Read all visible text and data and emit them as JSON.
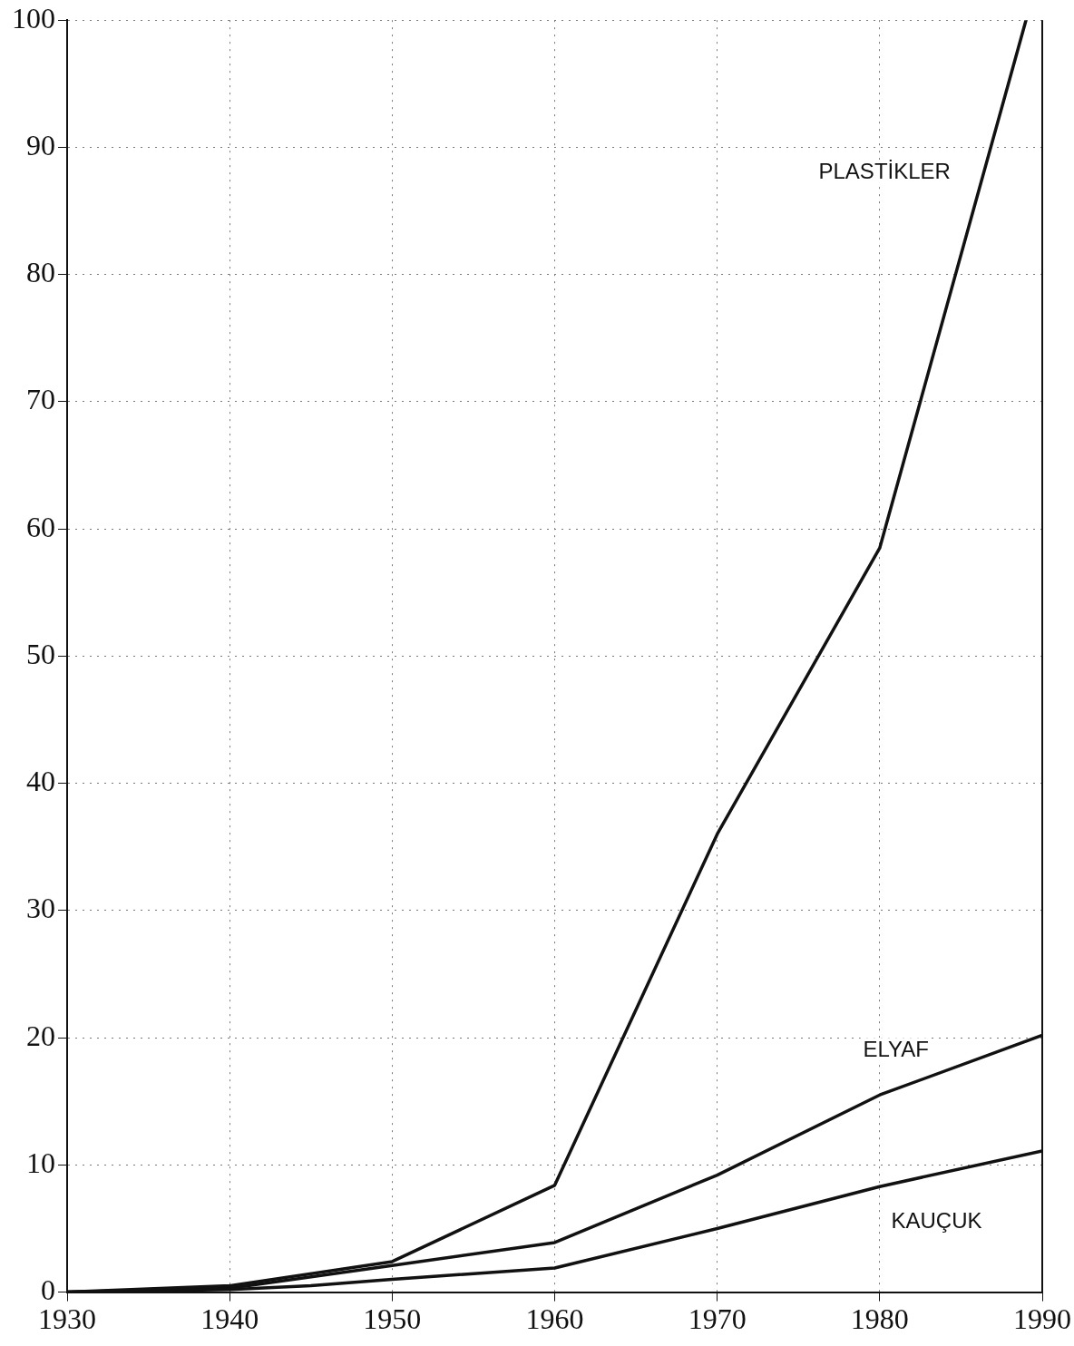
{
  "chart_data": {
    "type": "line",
    "xlim": [
      1930,
      1990
    ],
    "xticks": [
      1930,
      1940,
      1950,
      1960,
      1970,
      1980,
      1990
    ],
    "ylim": [
      0,
      100
    ],
    "yticks": [
      0,
      10,
      20,
      30,
      40,
      50,
      60,
      70,
      80,
      90,
      100
    ],
    "grid": true,
    "legend": false,
    "marker": "none",
    "line_style": "solid",
    "series": [
      {
        "name": "PLASTİKLER",
        "color": "#111111",
        "x": [
          1930,
          1940,
          1950,
          1960,
          1970,
          1980,
          1989
        ],
        "values": [
          0,
          0.5,
          2.4,
          8.4,
          36,
          58.5,
          100
        ]
      },
      {
        "name": "ELYAF",
        "color": "#111111",
        "x": [
          1930,
          1940,
          1950,
          1960,
          1970,
          1980,
          1990
        ],
        "values": [
          0,
          0.3,
          2.1,
          3.9,
          9.2,
          15.5,
          20.2
        ]
      },
      {
        "name": "KAUÇUK",
        "color": "#111111",
        "x": [
          1930,
          1940,
          1945,
          1950,
          1960,
          1970,
          1980,
          1990
        ],
        "values": [
          0,
          0.2,
          0.5,
          1,
          1.9,
          5,
          8.3,
          11.1
        ]
      }
    ]
  }
}
